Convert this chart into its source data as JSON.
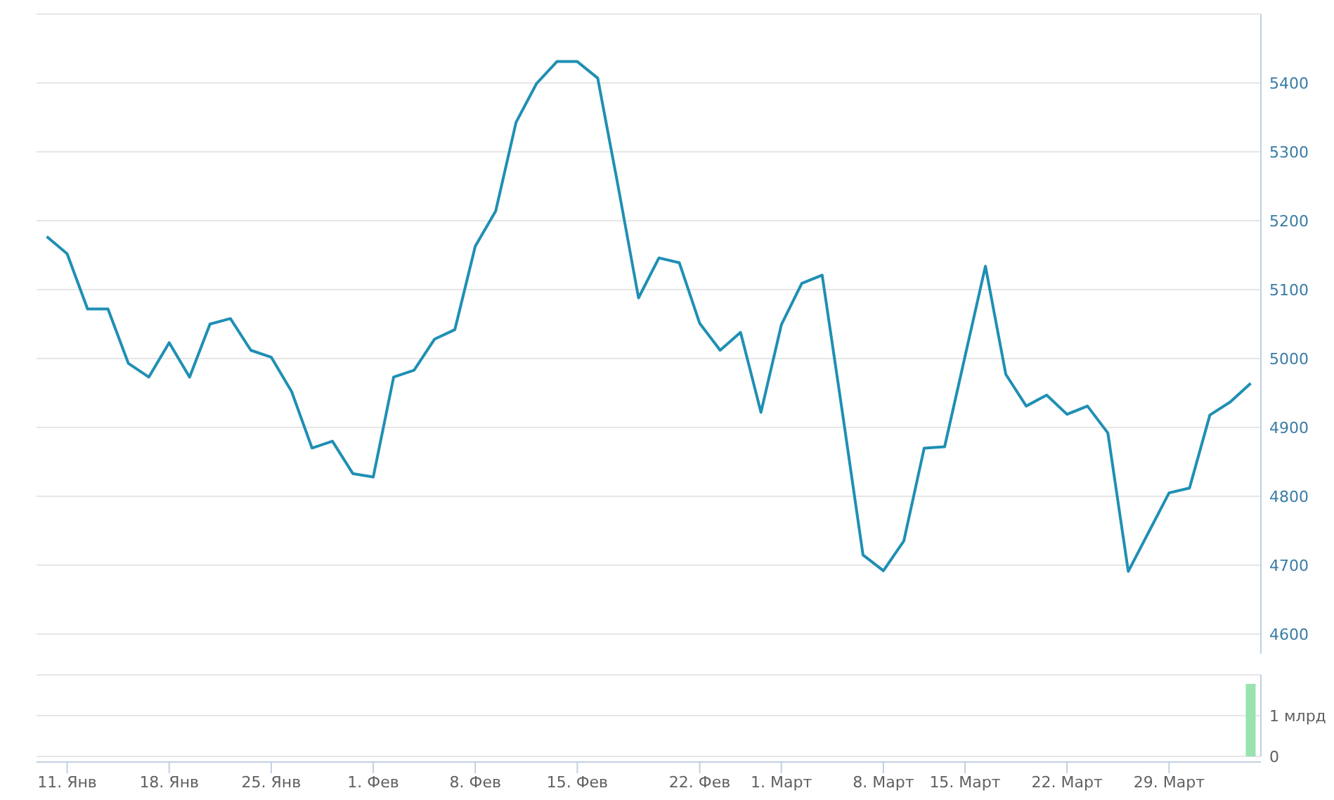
{
  "chart_data": [
    {
      "type": "line",
      "categories": [
        null,
        null,
        null,
        null,
        null,
        null,
        null,
        null,
        null,
        null,
        null,
        null,
        null,
        null,
        null,
        null,
        null,
        null,
        null,
        null,
        null,
        null,
        null,
        null,
        null,
        null,
        null,
        null,
        null,
        null,
        null,
        null,
        null,
        null,
        null,
        null,
        null,
        null,
        null,
        null,
        null,
        null,
        null,
        null,
        null,
        null,
        null,
        null,
        null,
        null,
        null,
        null,
        null,
        null,
        null,
        null,
        null,
        null,
        null,
        null
      ],
      "series": [
        {
          "color": "#1f8fb4",
          "values": [
            5177,
            5152,
            5072,
            5072,
            4993,
            4973,
            5023,
            4973,
            5050,
            5058,
            5012,
            5002,
            4952,
            4870,
            4880,
            4833,
            4828,
            4973,
            4983,
            5028,
            5042,
            5163,
            5214,
            5343,
            5399,
            5431,
            5431,
            5407,
            5250,
            5088,
            5146,
            5139,
            5051,
            5012,
            5038,
            4922,
            5049,
            5109,
            5121,
            4920,
            4715,
            4692,
            4735,
            4870,
            4872,
            5003,
            5134,
            4977,
            4931,
            4947,
            4919,
            4931,
            4892,
            4691,
            4748,
            4805,
            4812,
            4918,
            4937,
            4964
          ]
        }
      ],
      "ylim": [
        4600,
        5500
      ],
      "yticks": [
        4600,
        4700,
        4800,
        4900,
        5000,
        5100,
        5200,
        5300,
        5400
      ],
      "grid": "y",
      "tick_labels": "y",
      "marker": "none",
      "line_style": "solid"
    },
    {
      "type": "bar",
      "categories": [
        null,
        "11. Янв",
        null,
        null,
        null,
        null,
        "18. Янв",
        null,
        null,
        null,
        null,
        "25. Янв",
        null,
        null,
        null,
        null,
        "1. Фев",
        null,
        null,
        null,
        null,
        "8. Фев",
        null,
        null,
        null,
        null,
        "15. Фев",
        null,
        null,
        null,
        null,
        null,
        "22. Фев",
        null,
        null,
        null,
        "1. Март",
        null,
        null,
        null,
        null,
        "8. Март",
        null,
        null,
        null,
        "15. Март",
        null,
        null,
        null,
        null,
        "22. Март",
        null,
        null,
        null,
        null,
        "29. Март",
        null,
        null,
        null,
        null
      ],
      "series": [
        {
          "color": "#98e3b0",
          "values": [
            null,
            null,
            null,
            null,
            null,
            null,
            null,
            null,
            null,
            null,
            null,
            null,
            null,
            null,
            null,
            null,
            null,
            null,
            null,
            null,
            null,
            null,
            null,
            null,
            null,
            null,
            null,
            null,
            null,
            null,
            null,
            null,
            null,
            null,
            null,
            null,
            null,
            null,
            null,
            null,
            null,
            null,
            null,
            null,
            null,
            null,
            null,
            null,
            null,
            null,
            null,
            null,
            null,
            null,
            null,
            null,
            null,
            null,
            null,
            1.78
          ]
        }
      ],
      "ylim": [
        0,
        2
      ],
      "yticks": [
        {
          "value": 0,
          "label": "0"
        },
        {
          "value": 1,
          "label": "1 млрд"
        },
        {
          "value": 2,
          "label": null
        }
      ],
      "grid": "y"
    }
  ]
}
